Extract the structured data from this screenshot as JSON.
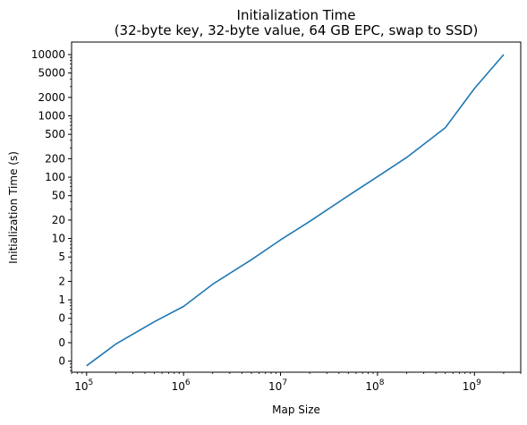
{
  "chart_data": {
    "type": "line",
    "title": "Initialization Time",
    "subtitle": "(32-byte key, 32-byte value, 64 GB EPC, swap to SSD)",
    "xlabel": "Map Size",
    "ylabel": "Initialization Time (s)",
    "xscale": "log",
    "yscale": "log",
    "xlim": [
      70000,
      3000000000
    ],
    "ylim": [
      0.066,
      16000
    ],
    "grid": false,
    "x_ticks": [
      {
        "value": 100000,
        "base": "10",
        "exp": "5"
      },
      {
        "value": 1000000,
        "base": "10",
        "exp": "6"
      },
      {
        "value": 10000000,
        "base": "10",
        "exp": "7"
      },
      {
        "value": 100000000,
        "base": "10",
        "exp": "8"
      },
      {
        "value": 1000000000,
        "base": "10",
        "exp": "9"
      }
    ],
    "y_ticks": [
      {
        "value": 10000,
        "label": "10000"
      },
      {
        "value": 5000,
        "label": "5000"
      },
      {
        "value": 2000,
        "label": "2000"
      },
      {
        "value": 1000,
        "label": "1000"
      },
      {
        "value": 500,
        "label": "500"
      },
      {
        "value": 200,
        "label": "200"
      },
      {
        "value": 100,
        "label": "100"
      },
      {
        "value": 50,
        "label": "50"
      },
      {
        "value": 20,
        "label": "20"
      },
      {
        "value": 10,
        "label": "10"
      },
      {
        "value": 5,
        "label": "5"
      },
      {
        "value": 2,
        "label": "2"
      },
      {
        "value": 1,
        "label": "1"
      },
      {
        "value": 0.5,
        "label": "0"
      },
      {
        "value": 0.2,
        "label": "0"
      },
      {
        "value": 0.1,
        "label": "0"
      }
    ],
    "series": [
      {
        "color": "#1f77b4",
        "x": [
          100000,
          200000,
          500000,
          1000000,
          2000000,
          5000000,
          10000000,
          20000000,
          50000000,
          100000000,
          200000000,
          500000000,
          1000000000,
          2000000000
        ],
        "y": [
          0.084,
          0.19,
          0.44,
          0.78,
          1.8,
          4.5,
          9.5,
          19,
          50,
          102,
          210,
          640,
          2800,
          10000
        ]
      }
    ]
  }
}
